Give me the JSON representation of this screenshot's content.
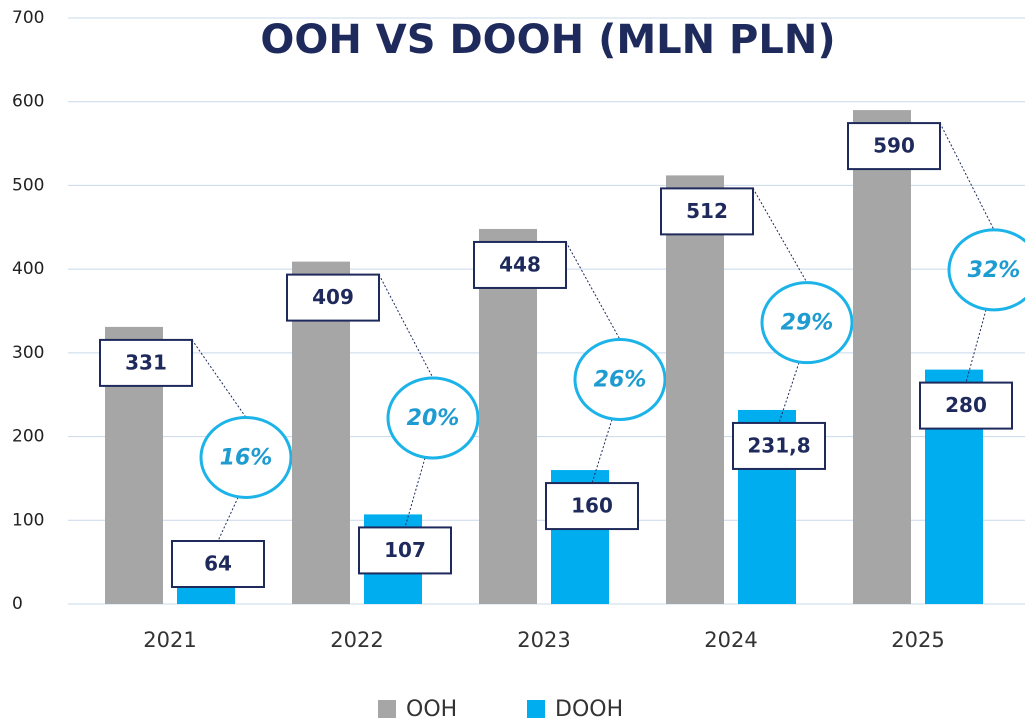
{
  "chart_data": {
    "type": "bar",
    "title": "OOH VS DOOH (MLN PLN)",
    "categories": [
      "2021",
      "2022",
      "2023",
      "2024",
      "2025"
    ],
    "series": [
      {
        "name": "OOH",
        "color": "#a6a6a6",
        "values": [
          331,
          409,
          448,
          512,
          590
        ]
      },
      {
        "name": "DOOH",
        "color": "#00aeef",
        "values": [
          64,
          107,
          160,
          231.8,
          280
        ],
        "value_labels": [
          "64",
          "107",
          "160",
          "231,8",
          "280"
        ]
      }
    ],
    "share": {
      "values": [
        16,
        20,
        26,
        29,
        32
      ],
      "value_labels": [
        "16%",
        "20%",
        "26%",
        "29%",
        "32%"
      ]
    },
    "ylim": [
      0,
      700
    ],
    "yticks": [
      0,
      100,
      200,
      300,
      400,
      500,
      600,
      700
    ],
    "grid": true
  }
}
